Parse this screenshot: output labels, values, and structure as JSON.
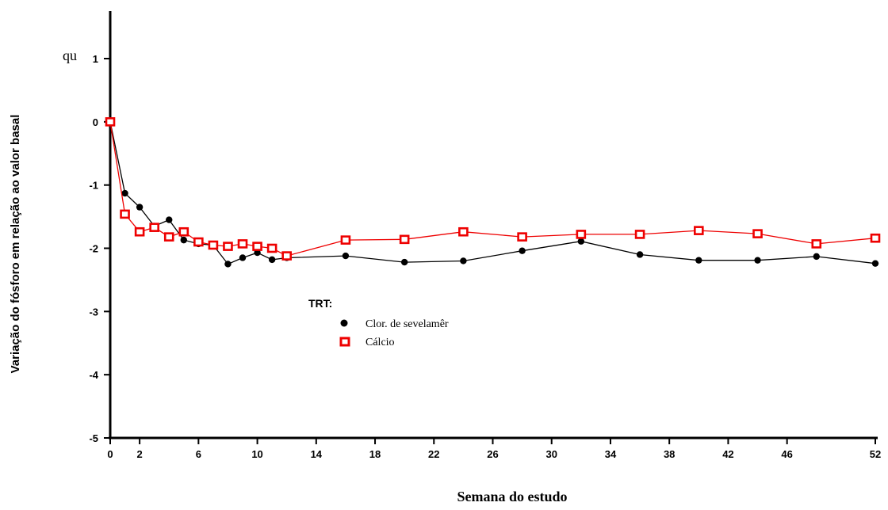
{
  "stray_text": "qu",
  "chart_data": {
    "type": "line",
    "title": "",
    "xlabel": "Semana do estudo",
    "ylabel": "Variação do fósforo em relação ao valor basal",
    "xlim": [
      0,
      52
    ],
    "ylim": [
      -5,
      1
    ],
    "xticks": [
      0,
      2,
      6,
      10,
      14,
      18,
      22,
      26,
      30,
      34,
      38,
      42,
      46,
      52
    ],
    "yticks": [
      1,
      0,
      -1,
      -2,
      -3,
      -4,
      -5
    ],
    "legend": {
      "title": "TRT:",
      "placement": "center-left"
    },
    "series": [
      {
        "name": "Clor. de sevelamêr",
        "color": "#000000",
        "marker": "filled-circle",
        "x": [
          0,
          1,
          2,
          3,
          4,
          5,
          6,
          7,
          8,
          9,
          10,
          11,
          12,
          16,
          20,
          24,
          28,
          32,
          36,
          40,
          44,
          48,
          52
        ],
        "y": [
          0,
          -1.13,
          -1.35,
          -1.65,
          -1.55,
          -1.87,
          -1.93,
          -1.95,
          -2.25,
          -2.15,
          -2.07,
          -2.18,
          -2.15,
          -2.12,
          -2.22,
          -2.2,
          -2.04,
          -1.89,
          -2.1,
          -2.19,
          -2.19,
          -2.13,
          -2.24
        ]
      },
      {
        "name": "Cálcio",
        "color": "#ee0000",
        "marker": "open-square",
        "x": [
          0,
          1,
          2,
          3,
          4,
          5,
          6,
          7,
          8,
          9,
          10,
          11,
          12,
          16,
          20,
          24,
          28,
          32,
          36,
          40,
          44,
          48,
          52
        ],
        "y": [
          0,
          -1.46,
          -1.74,
          -1.67,
          -1.82,
          -1.74,
          -1.9,
          -1.95,
          -1.97,
          -1.93,
          -1.97,
          -2.0,
          -2.12,
          -1.87,
          -1.86,
          -1.74,
          -1.82,
          -1.78,
          -1.78,
          -1.72,
          -1.77,
          -1.93,
          -1.84
        ]
      }
    ]
  }
}
